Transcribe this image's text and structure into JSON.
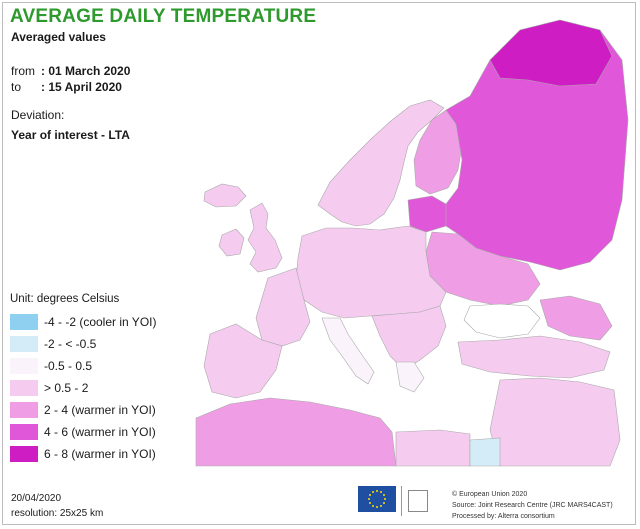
{
  "header": {
    "title": "AVERAGE DAILY TEMPERATURE",
    "subtitle": "Averaged values"
  },
  "period": {
    "from_label": "from",
    "from_value": ": 01 March 2020",
    "to_label": "to",
    "to_value": ": 15 April 2020"
  },
  "deviation": {
    "label": "Deviation:",
    "value": "Year of interest - LTA"
  },
  "legend": {
    "unit": "Unit: degrees Celsius",
    "items": [
      {
        "label": "-4 - -2 (cooler in YOI)",
        "color": "#8fd0f0"
      },
      {
        "label": "-2 - < -0.5",
        "color": "#d4ecf8"
      },
      {
        "label": "-0.5 - 0.5",
        "color": "#fbf3fb"
      },
      {
        "label": "> 0.5 - 2",
        "color": "#f6cbf0"
      },
      {
        "label": "2 - 4 (warmer in YOI)",
        "color": "#ef9ee5"
      },
      {
        "label": "4 - 6 (warmer in YOI)",
        "color": "#e157d9"
      },
      {
        "label": "6 - 8 (warmer in YOI)",
        "color": "#cf1dc4"
      }
    ]
  },
  "map_colors": {
    "sea": "#ffffff",
    "neutral": "#fbf3fb",
    "light": "#f6cbf0",
    "medium": "#ef9ee5",
    "strong": "#e157d9",
    "border": "#a9a9a9"
  },
  "footer": {
    "date": "20/04/2020",
    "resolution": "resolution: 25x25 km",
    "credits": [
      "© European Union 2020",
      "Source: Joint Research Centre (JRC MARS4CAST)",
      "Processed by: Alterra consortium"
    ]
  }
}
